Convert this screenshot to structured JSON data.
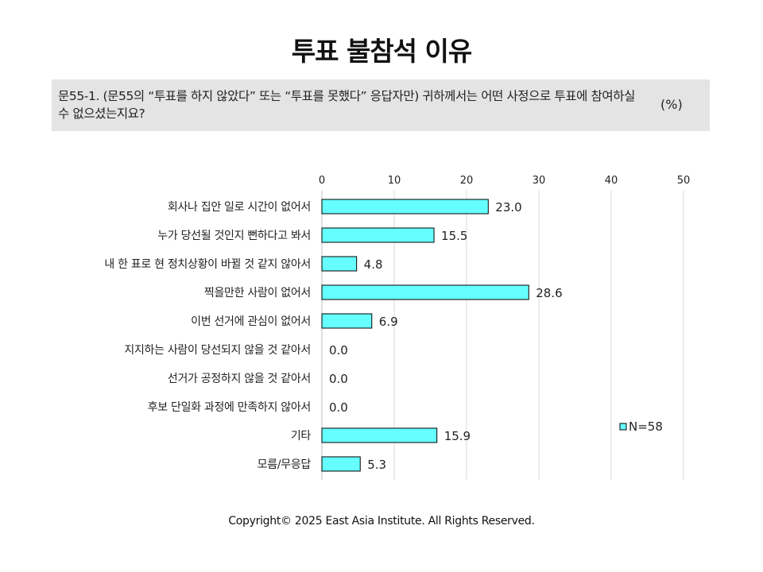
{
  "title": "투표 불참석 이유",
  "question": {
    "text": "문55-1. (문55의 “투표를 하지 않았다” 또는 “투표를 못했다” 응답자만) 귀하께서는 어떤 사정으로 투표에 참여하실 수 없으셨는지요?",
    "unit": "(%)"
  },
  "chart_data": {
    "type": "bar",
    "orientation": "horizontal",
    "categories": [
      "회사나 집안 일로 시간이 없어서",
      "누가 당선될 것인지 뻔하다고 봐서",
      "내 한 표로 현 정치상황이 바뀔 것 같지 않아서",
      "찍을만한 사람이 없어서",
      "이번 선거에 관심이 없어서",
      "지지하는 사람이 당선되지 않을 것 같아서",
      "선거가 공정하지 않을 것 같아서",
      "후보 단일화  과정에 만족하지 않아서",
      "기타",
      "모름/무응답"
    ],
    "values": [
      23.0,
      15.5,
      4.8,
      28.6,
      6.9,
      0.0,
      0.0,
      0.0,
      15.9,
      5.3
    ],
    "value_labels": [
      "23.0",
      "15.5",
      "4.8",
      "28.6",
      "6.9",
      "0.0",
      "0.0",
      "0.0",
      "15.9",
      "5.3"
    ],
    "xlim": [
      0,
      50
    ],
    "x_ticks": [
      0,
      10,
      20,
      30,
      40,
      50
    ],
    "x_axis_position": "top",
    "grid": true,
    "legend": {
      "label": "N=58",
      "placement": "right"
    },
    "bar_color": "#66ffff",
    "bar_border_color": "#000000",
    "grid_color": "#d9d9d9"
  },
  "footer": "Copyright© 2025 East Asia Institute. All Rights Reserved."
}
